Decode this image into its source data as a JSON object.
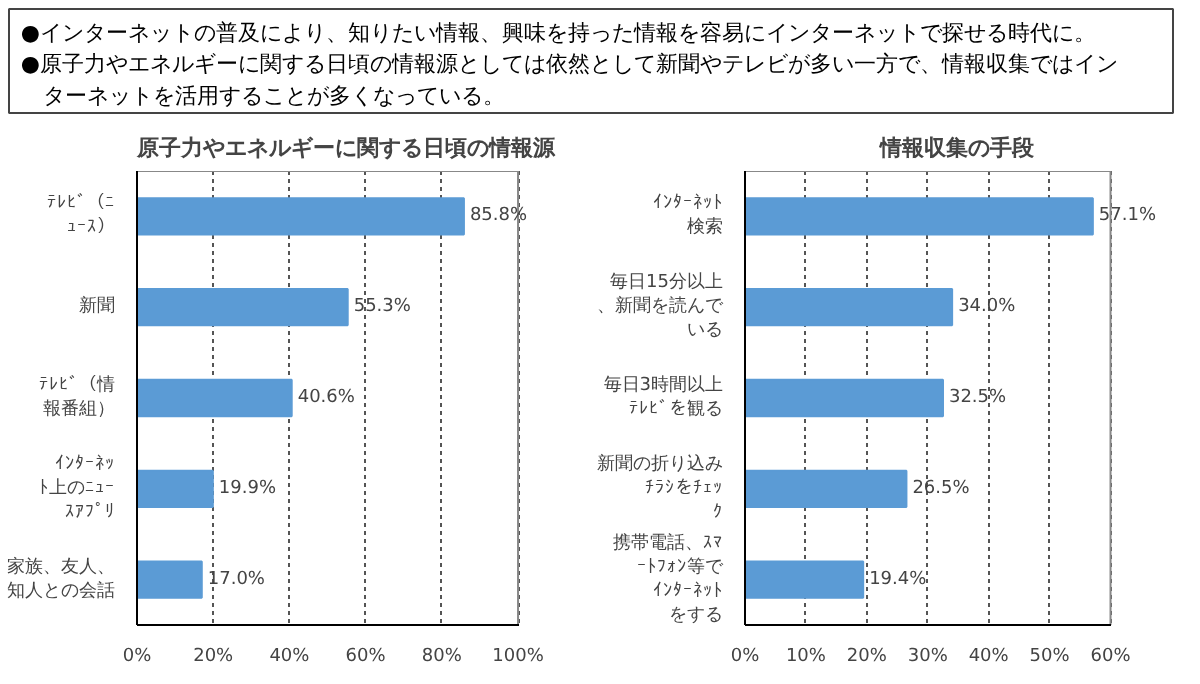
{
  "chart_data": [
    {
      "type": "other",
      "annotations": [
        "●インターネットの普及により、知りたい情報、興味を持った情報を容易にインターネットで探せる時代に。",
        "●原子力やエネルギーに関する日頃の情報源としては依然として新聞やテレビが多い一方で、情報収集ではインターネットを活用することが多くなっている。"
      ]
    },
    {
      "type": "bar",
      "orientation": "horizontal",
      "title": "原子力やエネルギーに関する日頃の情報源",
      "categories": [
        "ﾃﾚﾋﾞ（ﾆｭｰｽ）",
        "新聞",
        "ﾃﾚﾋﾞ（情報番組）",
        "ｲﾝﾀｰﾈｯﾄ上のﾆｭｰｽｱﾌﾟﾘ",
        "家族、友人、知人との会話"
      ],
      "values": [
        85.8,
        55.3,
        40.6,
        19.9,
        17.0
      ],
      "color": "#5b9bd5",
      "value_labels": [
        "85.8%",
        "55.3%",
        "40.6%",
        "19.9%",
        "17.0%"
      ],
      "xlim": [
        0,
        100
      ],
      "xticks": [
        {
          "value": 0,
          "label": "0%"
        },
        {
          "value": 20,
          "label": "20%"
        },
        {
          "value": 40,
          "label": "40%"
        },
        {
          "value": 60,
          "label": "60%"
        },
        {
          "value": 80,
          "label": "80%"
        },
        {
          "value": 100,
          "label": "100%"
        }
      ],
      "grid": "x"
    },
    {
      "type": "bar",
      "orientation": "horizontal",
      "title": "情報収集の手段",
      "categories": [
        "ｲﾝﾀｰﾈｯﾄ検索",
        "毎日15分以上、新聞を読んでいる",
        "毎日3時間以上ﾃﾚﾋﾞを観る",
        "新聞の折り込みﾁﾗｼをﾁｪｯｸ",
        "携帯電話、ｽﾏｰﾄﾌｫﾝ等でｲﾝﾀｰﾈｯﾄをする"
      ],
      "values": [
        57.1,
        34.0,
        32.5,
        26.5,
        19.4
      ],
      "color": "#5b9bd5",
      "value_labels": [
        "57.1%",
        "34.0%",
        "32.5%",
        "26.5%",
        "19.4%"
      ],
      "xlim": [
        0,
        60
      ],
      "xticks": [
        {
          "value": 0,
          "label": "0%"
        },
        {
          "value": 10,
          "label": "10%"
        },
        {
          "value": 20,
          "label": "20%"
        },
        {
          "value": 30,
          "label": "30%"
        },
        {
          "value": 40,
          "label": "40%"
        },
        {
          "value": 50,
          "label": "50%"
        },
        {
          "value": 60,
          "label": "60%"
        }
      ],
      "grid": "x"
    }
  ]
}
